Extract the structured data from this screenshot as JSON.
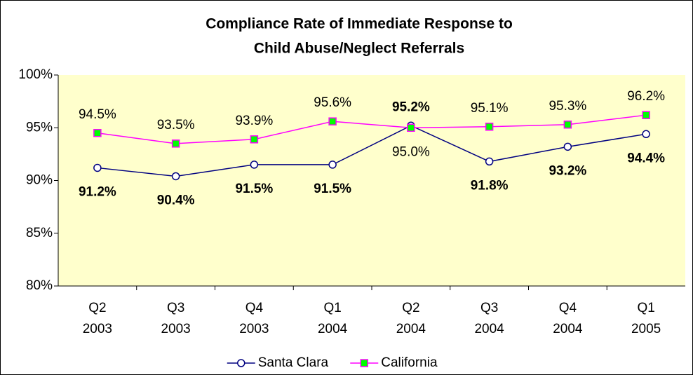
{
  "chart_data": {
    "type": "line",
    "title": [
      "Compliance Rate of Immediate Response to",
      "Child Abuse/Neglect Referrals"
    ],
    "categories": [
      "Q2 2003",
      "Q3 2003",
      "Q4 2003",
      "Q1 2004",
      "Q2 2004",
      "Q3 2004",
      "Q4 2004",
      "Q1 2005"
    ],
    "series": [
      {
        "name": "Santa Clara",
        "color": "#000080",
        "marker": "circle",
        "marker_fill": "#ffffff",
        "bold_labels": true,
        "values": [
          91.2,
          90.4,
          91.5,
          91.5,
          95.2,
          91.8,
          93.2,
          94.4
        ],
        "value_labels": [
          "91.2%",
          "90.4%",
          "91.5%",
          "91.5%",
          "95.2%",
          "91.8%",
          "93.2%",
          "94.4%"
        ]
      },
      {
        "name": "California",
        "color": "#ff00ff",
        "marker": "square",
        "marker_fill": "#00ff00",
        "bold_labels": false,
        "values": [
          94.5,
          93.5,
          93.9,
          95.6,
          95.0,
          95.1,
          95.3,
          96.2
        ],
        "value_labels": [
          "94.5%",
          "93.5%",
          "93.9%",
          "95.6%",
          "95.0%",
          "95.1%",
          "95.3%",
          "96.2%"
        ]
      }
    ],
    "ylim": [
      80,
      100
    ],
    "yticks": [
      {
        "value": 80,
        "label": "80%"
      },
      {
        "value": 85,
        "label": "85%"
      },
      {
        "value": 90,
        "label": "90%"
      },
      {
        "value": 95,
        "label": "95%"
      },
      {
        "value": 100,
        "label": "100%"
      }
    ],
    "grid": false,
    "legend": "bottom",
    "plot_background": "#ffffcc"
  }
}
